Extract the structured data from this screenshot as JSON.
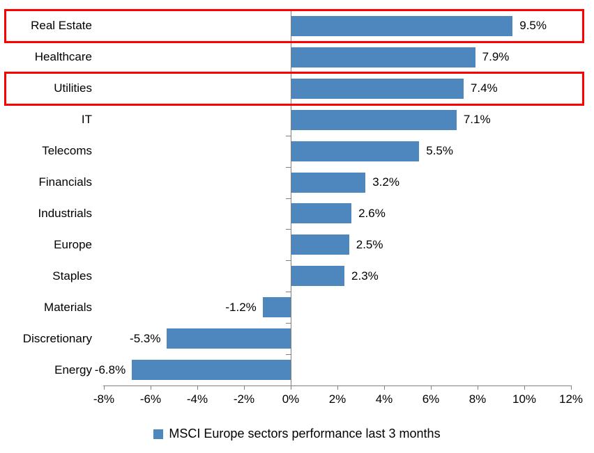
{
  "chart_data": {
    "type": "bar",
    "orientation": "horizontal",
    "categories": [
      "Real Estate",
      "Healthcare",
      "Utilities",
      "IT",
      "Telecoms",
      "Financials",
      "Industrials",
      "Europe",
      "Staples",
      "Materials",
      "Discretionary",
      "Energy"
    ],
    "values": [
      9.5,
      7.9,
      7.4,
      7.1,
      5.5,
      3.2,
      2.6,
      2.5,
      2.3,
      -1.2,
      -5.3,
      -6.8
    ],
    "data_labels": [
      "9.5%",
      "7.9%",
      "7.4%",
      "7.1%",
      "5.5%",
      "3.2%",
      "2.6%",
      "2.5%",
      "2.3%",
      "-1.2%",
      "-5.3%",
      "-6.8%"
    ],
    "legend": "MSCI Europe sectors performance last 3 months",
    "legend_position": "bottom",
    "xlim": [
      -8,
      12
    ],
    "x_tick_step": 2,
    "x_tick_labels": [
      "-8%",
      "-6%",
      "-4%",
      "-2%",
      "0%",
      "2%",
      "4%",
      "6%",
      "8%",
      "10%",
      "12%"
    ],
    "grid": false,
    "bar_color": "#4d87bd",
    "axis_color": "#808080",
    "highlight_color": "#fe0000",
    "highlighted_categories": [
      "Real Estate",
      "Utilities"
    ]
  }
}
